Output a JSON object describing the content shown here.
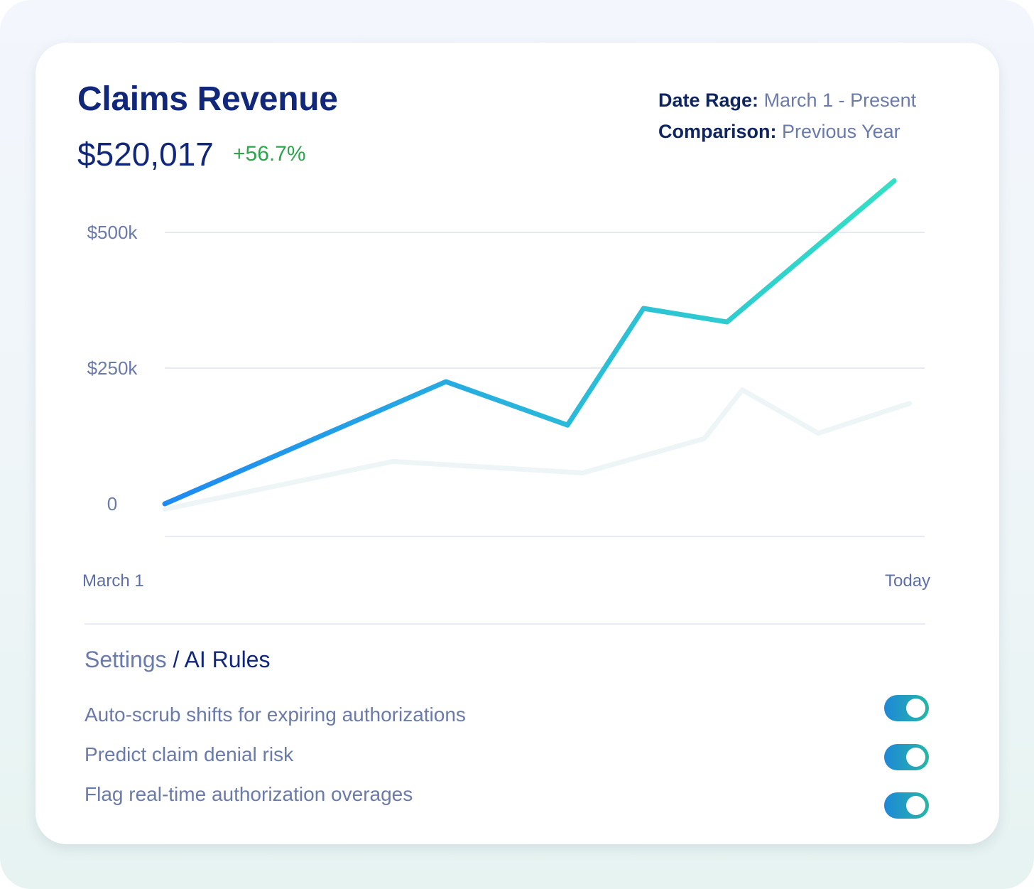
{
  "header": {
    "title": "Claims Revenue",
    "total": "$520,017",
    "change": "+56.7%",
    "change_color": "#2ca54b"
  },
  "meta": {
    "date_range_label": "Date Rage:",
    "date_range_value": "March 1 - Present",
    "comparison_label": "Comparison:",
    "comparison_value": "Previous Year"
  },
  "chart_data": {
    "type": "line",
    "x_labels": [
      "March 1",
      "Today"
    ],
    "y_ticks": [
      {
        "label": "$500k",
        "value": 500000
      },
      {
        "label": "$250k",
        "value": 250000
      },
      {
        "label": "0",
        "value": 0
      }
    ],
    "ylim": [
      -60000,
      600000
    ],
    "grid": true,
    "series": [
      {
        "role": "current",
        "color_start": "#1e8af2",
        "color_end": "#33e0c5",
        "points": [
          {
            "x": 0,
            "y": 0
          },
          {
            "x": 0.37,
            "y": 225000
          },
          {
            "x": 0.53,
            "y": 145000
          },
          {
            "x": 0.63,
            "y": 360000
          },
          {
            "x": 0.74,
            "y": 335000
          },
          {
            "x": 0.96,
            "y": 595000
          }
        ]
      },
      {
        "role": "comparison",
        "color": "#eef5f7",
        "points": [
          {
            "x": 0,
            "y": -10000
          },
          {
            "x": 0.3,
            "y": 78000
          },
          {
            "x": 0.55,
            "y": 57000
          },
          {
            "x": 0.71,
            "y": 120000
          },
          {
            "x": 0.76,
            "y": 210000
          },
          {
            "x": 0.86,
            "y": 130000
          },
          {
            "x": 0.98,
            "y": 185000
          }
        ]
      }
    ]
  },
  "settings": {
    "breadcrumb_parent": "Settings",
    "breadcrumb_sep": " / ",
    "breadcrumb_current": "AI Rules",
    "rules": [
      {
        "label": "Auto-scrub shifts for expiring authorizations",
        "enabled": true
      },
      {
        "label": "Predict claim denial risk",
        "enabled": true
      },
      {
        "label": "Flag real-time authorization overages",
        "enabled": true
      }
    ]
  }
}
